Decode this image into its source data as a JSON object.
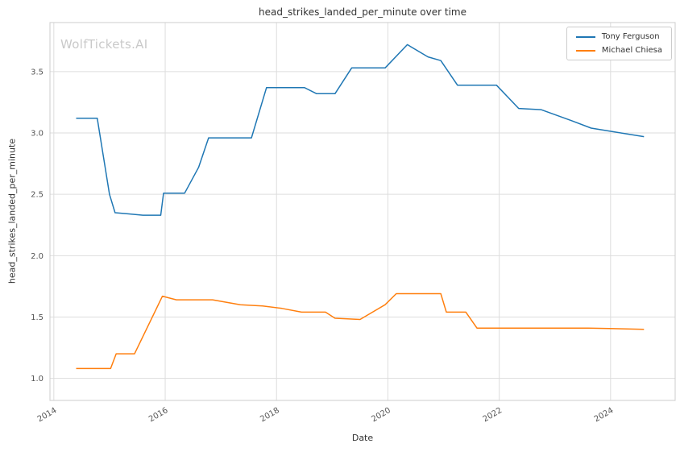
{
  "watermark": "WolfTickets.AI",
  "chart_data": {
    "type": "line",
    "title": "head_strikes_landed_per_minute over time",
    "xlabel": "Date",
    "ylabel": "head_strikes_landed_per_minute",
    "xlim": [
      2013.93,
      2025.16
    ],
    "ylim": [
      0.82,
      3.9
    ],
    "x_ticks": [
      2014,
      2016,
      2018,
      2020,
      2022,
      2024
    ],
    "y_ticks": [
      1.0,
      1.5,
      2.0,
      2.5,
      3.0,
      3.5
    ],
    "grid": true,
    "legend_position": "upper right",
    "series": [
      {
        "name": "Tony Ferguson",
        "color": "#1f77b4",
        "points": [
          [
            2014.4,
            3.12
          ],
          [
            2014.78,
            3.12
          ],
          [
            2015.0,
            2.5
          ],
          [
            2015.1,
            2.35
          ],
          [
            2015.35,
            2.34
          ],
          [
            2015.6,
            2.33
          ],
          [
            2015.92,
            2.33
          ],
          [
            2015.97,
            2.51
          ],
          [
            2016.35,
            2.51
          ],
          [
            2016.6,
            2.72
          ],
          [
            2016.78,
            2.96
          ],
          [
            2017.3,
            2.96
          ],
          [
            2017.55,
            2.96
          ],
          [
            2017.82,
            3.37
          ],
          [
            2018.5,
            3.37
          ],
          [
            2018.72,
            3.32
          ],
          [
            2019.05,
            3.32
          ],
          [
            2019.35,
            3.53
          ],
          [
            2019.95,
            3.53
          ],
          [
            2020.35,
            3.72
          ],
          [
            2020.72,
            3.62
          ],
          [
            2020.95,
            3.59
          ],
          [
            2021.25,
            3.39
          ],
          [
            2021.95,
            3.39
          ],
          [
            2022.35,
            3.2
          ],
          [
            2022.75,
            3.19
          ],
          [
            2023.3,
            3.1
          ],
          [
            2023.65,
            3.04
          ],
          [
            2024.05,
            3.01
          ],
          [
            2024.6,
            2.97
          ]
        ]
      },
      {
        "name": "Michael Chiesa",
        "color": "#ff7f0e",
        "points": [
          [
            2014.4,
            1.08
          ],
          [
            2015.02,
            1.08
          ],
          [
            2015.12,
            1.2
          ],
          [
            2015.45,
            1.2
          ],
          [
            2015.95,
            1.67
          ],
          [
            2016.2,
            1.64
          ],
          [
            2016.85,
            1.64
          ],
          [
            2017.35,
            1.6
          ],
          [
            2017.75,
            1.59
          ],
          [
            2018.1,
            1.57
          ],
          [
            2018.45,
            1.54
          ],
          [
            2018.88,
            1.54
          ],
          [
            2019.05,
            1.49
          ],
          [
            2019.5,
            1.48
          ],
          [
            2019.95,
            1.6
          ],
          [
            2020.15,
            1.69
          ],
          [
            2020.95,
            1.69
          ],
          [
            2021.05,
            1.54
          ],
          [
            2021.4,
            1.54
          ],
          [
            2021.6,
            1.41
          ],
          [
            2022.6,
            1.41
          ],
          [
            2023.6,
            1.41
          ],
          [
            2024.6,
            1.4
          ]
        ]
      }
    ]
  }
}
